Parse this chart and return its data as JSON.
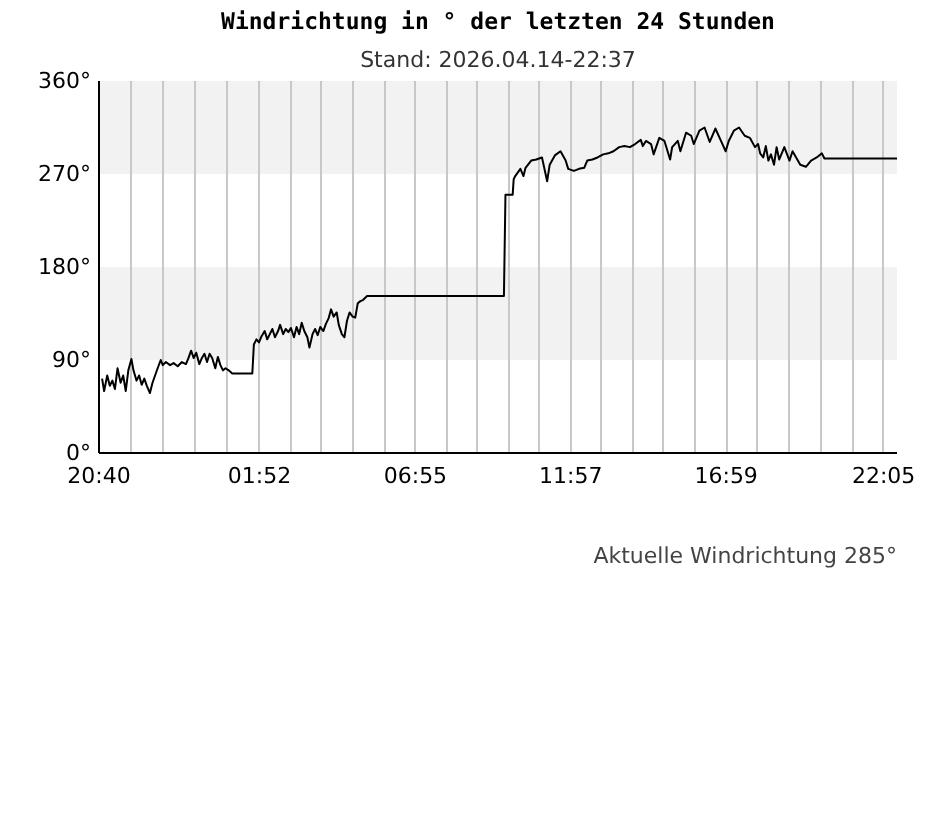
{
  "chart_data": {
    "type": "line",
    "title": "Windrichtung in ° der letzten 24 Stunden",
    "subtitle": "Stand: 2026.04.14-22:37",
    "annotations": [
      "Aktuelle Windrichtung 285°"
    ],
    "x": [
      "2026-04-13T20:46",
      "2026-04-13T20:50",
      "2026-04-13T20:56",
      "2026-04-13T21:01",
      "2026-04-13T21:06",
      "2026-04-13T21:11",
      "2026-04-13T21:16",
      "2026-04-13T21:22",
      "2026-04-13T21:27",
      "2026-04-13T21:32",
      "2026-04-13T21:37",
      "2026-04-13T21:43",
      "2026-04-13T21:47",
      "2026-04-13T21:53",
      "2026-04-13T21:58",
      "2026-04-13T22:03",
      "2026-04-13T22:08",
      "2026-04-13T22:13",
      "2026-04-13T22:19",
      "2026-04-13T22:24",
      "2026-04-13T22:29",
      "2026-04-13T22:34",
      "2026-04-13T22:40",
      "2026-04-13T22:44",
      "2026-04-13T22:50",
      "2026-04-13T22:58",
      "2026-04-13T23:05",
      "2026-04-13T23:13",
      "2026-04-13T23:21",
      "2026-04-13T23:29",
      "2026-04-13T23:34",
      "2026-04-13T23:39",
      "2026-04-13T23:44",
      "2026-04-13T23:49",
      "2026-04-13T23:55",
      "2026-04-14T00:00",
      "2026-04-14T00:05",
      "2026-04-14T00:10",
      "2026-04-14T00:15",
      "2026-04-14T00:20",
      "2026-04-14T00:26",
      "2026-04-14T00:31",
      "2026-04-14T00:36",
      "2026-04-14T00:41",
      "2026-04-14T00:46",
      "2026-04-14T00:52",
      "2026-04-14T00:59",
      "2026-04-14T01:38",
      "2026-04-14T01:41",
      "2026-04-14T01:46",
      "2026-04-14T01:51",
      "2026-04-14T01:56",
      "2026-04-14T02:02",
      "2026-04-14T02:07",
      "2026-04-14T02:12",
      "2026-04-14T02:17",
      "2026-04-14T02:22",
      "2026-04-14T02:28",
      "2026-04-14T02:32",
      "2026-04-14T02:38",
      "2026-04-14T02:43",
      "2026-04-14T02:48",
      "2026-04-14T02:53",
      "2026-04-14T02:59",
      "2026-04-14T03:04",
      "2026-04-14T03:09",
      "2026-04-14T03:14",
      "2026-04-14T03:19",
      "2026-04-14T03:25",
      "2026-04-14T03:29",
      "2026-04-14T03:35",
      "2026-04-14T03:40",
      "2026-04-14T03:45",
      "2026-04-14T03:50",
      "2026-04-14T03:56",
      "2026-04-14T04:01",
      "2026-04-14T04:06",
      "2026-04-14T04:11",
      "2026-04-14T04:16",
      "2026-04-14T04:22",
      "2026-04-14T04:26",
      "2026-04-14T04:32",
      "2026-04-14T04:37",
      "2026-04-14T04:42",
      "2026-04-14T04:47",
      "2026-04-14T04:53",
      "2026-04-14T04:58",
      "2026-04-14T05:03",
      "2026-04-14T05:08",
      "2026-04-14T05:13",
      "2026-04-14T05:21",
      "2026-04-14T09:47",
      "2026-04-14T09:50",
      "2026-04-14T10:04",
      "2026-04-14T10:06",
      "2026-04-14T10:09",
      "2026-04-14T10:19",
      "2026-04-14T10:25",
      "2026-04-14T10:29",
      "2026-04-14T10:40",
      "2026-04-14T10:50",
      "2026-04-14T11:01",
      "2026-04-14T11:11",
      "2026-04-14T11:16",
      "2026-04-14T11:26",
      "2026-04-14T11:37",
      "2026-04-14T11:47",
      "2026-04-14T11:52",
      "2026-04-14T12:03",
      "2026-04-14T12:13",
      "2026-04-14T12:23",
      "2026-04-14T12:29",
      "2026-04-14T12:39",
      "2026-04-14T12:49",
      "2026-04-14T13:00",
      "2026-04-14T13:10",
      "2026-04-14T13:20",
      "2026-04-14T13:31",
      "2026-04-14T13:41",
      "2026-04-14T13:52",
      "2026-04-14T14:02",
      "2026-04-14T14:13",
      "2026-04-14T14:17",
      "2026-04-14T14:23",
      "2026-04-14T14:33",
      "2026-04-14T14:38",
      "2026-04-14T14:49",
      "2026-04-14T14:59",
      "2026-04-14T15:10",
      "2026-04-14T15:14",
      "2026-04-14T15:25",
      "2026-04-14T15:30",
      "2026-04-14T15:41",
      "2026-04-14T15:51",
      "2026-04-14T15:56",
      "2026-04-14T16:07",
      "2026-04-14T16:17",
      "2026-04-14T16:27",
      "2026-04-14T16:38",
      "2026-04-14T16:48",
      "2026-04-14T16:58",
      "2026-04-14T17:04",
      "2026-04-14T17:14",
      "2026-04-14T17:24",
      "2026-04-14T17:35",
      "2026-04-14T17:45",
      "2026-04-14T17:55",
      "2026-04-14T18:01",
      "2026-04-14T18:05",
      "2026-04-14T18:11",
      "2026-04-14T18:16",
      "2026-04-14T18:21",
      "2026-04-14T18:26",
      "2026-04-14T18:32",
      "2026-04-14T18:37",
      "2026-04-14T18:42",
      "2026-04-14T18:52",
      "2026-04-14T19:02",
      "2026-04-14T19:08",
      "2026-04-14T19:23",
      "2026-04-14T19:34",
      "2026-04-14T19:44",
      "2026-04-14T19:55",
      "2026-04-14T20:05",
      "2026-04-14T20:10",
      "2026-04-14T22:31"
    ],
    "series": [
      {
        "color": "#000000",
        "values": [
          72,
          60,
          75,
          65,
          70,
          62,
          82,
          68,
          75,
          60,
          80,
          91,
          80,
          70,
          75,
          66,
          72,
          65,
          58,
          68,
          75,
          82,
          90,
          85,
          88,
          85,
          87,
          84,
          88,
          86,
          92,
          99,
          92,
          97,
          86,
          92,
          96,
          88,
          96,
          92,
          82,
          93,
          85,
          80,
          82,
          80,
          77,
          77,
          105,
          110,
          107,
          113,
          118,
          110,
          115,
          120,
          112,
          118,
          124,
          115,
          120,
          117,
          121,
          112,
          122,
          115,
          126,
          118,
          112,
          102,
          115,
          120,
          114,
          122,
          118,
          125,
          130,
          139,
          132,
          136,
          124,
          115,
          112,
          128,
          136,
          132,
          131,
          145,
          147,
          148,
          152,
          152,
          250,
          250,
          265,
          268,
          275,
          268,
          276,
          283,
          284,
          286,
          263,
          279,
          288,
          292,
          283,
          275,
          273,
          275,
          276,
          283,
          284,
          286,
          289,
          290,
          292,
          296,
          297,
          296,
          299,
          303,
          297,
          302,
          299,
          289,
          305,
          302,
          284,
          296,
          302,
          292,
          310,
          307,
          299,
          312,
          315,
          301,
          314,
          303,
          292,
          302,
          312,
          315,
          307,
          305,
          296,
          299,
          290,
          286,
          297,
          283,
          289,
          279,
          296,
          284,
          296,
          283,
          292,
          279,
          277,
          283,
          286,
          290,
          285,
          285
        ]
      }
    ],
    "xlim": [
      "2026-04-13T20:40",
      "2026-04-14T22:31"
    ],
    "xticks": [
      {
        "value": "2026-04-13T20:40",
        "label": "20:40"
      },
      {
        "value": "2026-04-13T21:42",
        "label": null
      },
      {
        "value": "2026-04-13T22:45",
        "label": null
      },
      {
        "value": "2026-04-13T23:47",
        "label": null
      },
      {
        "value": "2026-04-14T00:50",
        "label": null
      },
      {
        "value": "2026-04-14T01:52",
        "label": "01:52"
      },
      {
        "value": "2026-04-14T02:53",
        "label": null
      },
      {
        "value": "2026-04-14T03:53",
        "label": null
      },
      {
        "value": "2026-04-14T04:54",
        "label": null
      },
      {
        "value": "2026-04-14T05:54",
        "label": null
      },
      {
        "value": "2026-04-14T06:55",
        "label": "06:55"
      },
      {
        "value": "2026-04-14T07:55",
        "label": null
      },
      {
        "value": "2026-04-14T08:56",
        "label": null
      },
      {
        "value": "2026-04-14T09:56",
        "label": null
      },
      {
        "value": "2026-04-14T10:57",
        "label": null
      },
      {
        "value": "2026-04-14T11:57",
        "label": "11:57"
      },
      {
        "value": "2026-04-14T12:57",
        "label": null
      },
      {
        "value": "2026-04-14T13:58",
        "label": null
      },
      {
        "value": "2026-04-14T14:58",
        "label": null
      },
      {
        "value": "2026-04-14T15:59",
        "label": null
      },
      {
        "value": "2026-04-14T16:59",
        "label": "16:59"
      },
      {
        "value": "2026-04-14T18:00",
        "label": null
      },
      {
        "value": "2026-04-14T19:01",
        "label": null
      },
      {
        "value": "2026-04-14T20:03",
        "label": null
      },
      {
        "value": "2026-04-14T21:04",
        "label": null
      },
      {
        "value": "2026-04-14T22:05",
        "label": "22:05"
      }
    ],
    "ylim": [
      0,
      360
    ],
    "yticks": [
      {
        "value": 0,
        "label": "0°"
      },
      {
        "value": 90,
        "label": "90°"
      },
      {
        "value": 180,
        "label": "180°"
      },
      {
        "value": 270,
        "label": "270°"
      },
      {
        "value": 360,
        "label": "360°"
      }
    ],
    "bands": [
      {
        "axis": "y",
        "from": 90,
        "to": 180,
        "color": "#f2f2f2"
      },
      {
        "axis": "y",
        "from": 270,
        "to": 360,
        "color": "#f2f2f2"
      }
    ],
    "grid": "x"
  }
}
